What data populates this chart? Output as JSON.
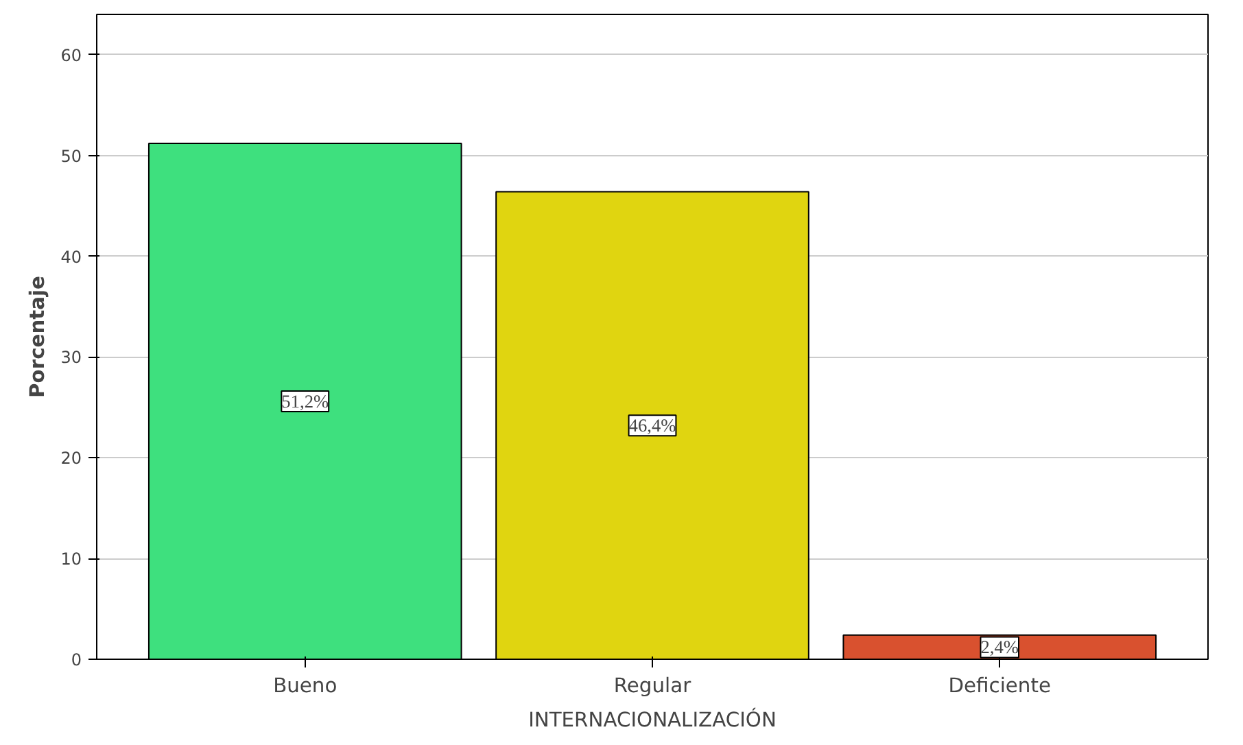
{
  "chart_data": {
    "type": "bar",
    "xlabel": "INTERNACIONALIZACIÓN",
    "ylabel": "Porcentaje",
    "categories": [
      "Bueno",
      "Regular",
      "Deficiente"
    ],
    "values": [
      51.2,
      46.4,
      2.4
    ],
    "colors": [
      "#3ee07e",
      "#e0d510",
      "#d9512f"
    ],
    "value_labels": [
      "51,2%",
      "46,4%",
      "2,4%"
    ],
    "ylim": [
      0,
      64
    ],
    "yticks": [
      0,
      10,
      20,
      30,
      40,
      50,
      60
    ],
    "grid": "y"
  }
}
